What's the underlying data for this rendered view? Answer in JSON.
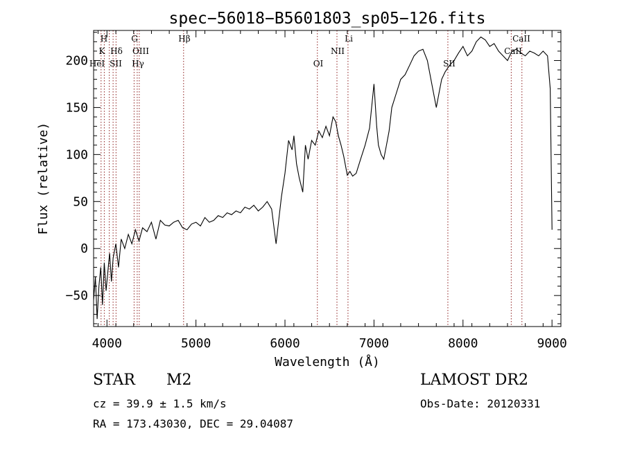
{
  "chart_data": {
    "type": "line",
    "title": "spec−56018−B5601803_sp05−126.fits",
    "xlabel": "Wavelength (Å)",
    "ylabel": "Flux (relative)",
    "xlim": [
      3850,
      9100
    ],
    "ylim": [
      -83,
      232
    ],
    "xticks": [
      4000,
      5000,
      6000,
      7000,
      8000,
      9000
    ],
    "xtick_labels": [
      "4000",
      "5000",
      "6000",
      "7000",
      "8000",
      "9000"
    ],
    "yticks": [
      -50,
      0,
      50,
      100,
      150,
      200
    ],
    "ytick_labels": [
      "−50",
      "0",
      "50",
      "100",
      "150",
      "200"
    ],
    "grid": false,
    "series": [
      {
        "x": [
          3850,
          3870,
          3890,
          3910,
          3930,
          3950,
          3970,
          3990,
          4010,
          4030,
          4050,
          4070,
          4100,
          4130,
          4160,
          4200,
          4240,
          4280,
          4320,
          4360,
          4400,
          4450,
          4500,
          4550,
          4600,
          4650,
          4700,
          4750,
          4800,
          4850,
          4900,
          4950,
          5000,
          5050,
          5100,
          5150,
          5200,
          5250,
          5300,
          5350,
          5400,
          5450,
          5500,
          5550,
          5600,
          5650,
          5700,
          5750,
          5800,
          5850,
          5880,
          5900,
          5930,
          5960,
          6000,
          6040,
          6080,
          6100,
          6130,
          6160,
          6200,
          6230,
          6260,
          6300,
          6340,
          6380,
          6420,
          6460,
          6500,
          6540,
          6570,
          6600,
          6630,
          6660,
          6700,
          6730,
          6760,
          6800,
          6850,
          6900,
          6950,
          7000,
          7030,
          7050,
          7080,
          7110,
          7140,
          7170,
          7200,
          7250,
          7300,
          7350,
          7400,
          7450,
          7500,
          7550,
          7600,
          7650,
          7700,
          7730,
          7760,
          7800,
          7850,
          7900,
          7950,
          8000,
          8050,
          8100,
          8150,
          8200,
          8250,
          8300,
          8350,
          8400,
          8450,
          8500,
          8550,
          8600,
          8650,
          8700,
          8750,
          8800,
          8850,
          8900,
          8950,
          8980,
          9000
        ],
        "y": [
          -55,
          -30,
          -75,
          -40,
          -20,
          -60,
          -15,
          -45,
          -25,
          -5,
          -35,
          -10,
          5,
          -20,
          10,
          0,
          15,
          5,
          20,
          8,
          22,
          18,
          28,
          10,
          30,
          25,
          24,
          28,
          30,
          22,
          20,
          26,
          28,
          24,
          33,
          28,
          30,
          35,
          33,
          38,
          36,
          40,
          38,
          44,
          42,
          46,
          40,
          44,
          50,
          42,
          20,
          5,
          30,
          55,
          80,
          115,
          105,
          120,
          90,
          75,
          60,
          110,
          95,
          115,
          110,
          125,
          118,
          130,
          120,
          140,
          135,
          120,
          110,
          98,
          78,
          82,
          77,
          80,
          95,
          110,
          128,
          175,
          130,
          110,
          100,
          95,
          110,
          125,
          150,
          165,
          180,
          185,
          195,
          205,
          210,
          212,
          200,
          175,
          150,
          165,
          180,
          188,
          195,
          200,
          208,
          215,
          205,
          210,
          220,
          225,
          222,
          215,
          218,
          210,
          205,
          200,
          210,
          212,
          208,
          205,
          210,
          208,
          205,
          210,
          205,
          170,
          20
        ]
      }
    ],
    "lines": [
      {
        "label": "H",
        "x": 3970
      },
      {
        "label": "K",
        "x": 3934
      },
      {
        "label": "HeI",
        "x": 4026
      },
      {
        "label": "SII",
        "x": 4069
      },
      {
        "label": "Hδ",
        "x": 4102
      },
      {
        "label": "G",
        "x": 4305
      },
      {
        "label": "OIII",
        "x": 4363
      },
      {
        "label": "Hγ",
        "x": 4340
      },
      {
        "label": "Hβ",
        "x": 4861
      },
      {
        "label": "OI",
        "x": 6364
      },
      {
        "label": "NII",
        "x": 6584
      },
      {
        "label": "Li",
        "x": 6708
      },
      {
        "label": "SII",
        "x": 7830
      },
      {
        "label": "CaII",
        "x": 8542
      },
      {
        "label": "CaII",
        "x": 8662
      }
    ],
    "line_label_rows": [
      {
        "labels": [
          "H",
          "G",
          "Hβ",
          "Li",
          "CaII"
        ]
      },
      {
        "labels": [
          "K",
          "Hδ",
          "OIII",
          "NII",
          "CaII"
        ]
      },
      {
        "labels": [
          "HeI",
          "SII",
          "Hγ",
          "OI",
          "SII"
        ]
      }
    ],
    "line_color": "#8b1a1a"
  },
  "footer": {
    "object_class": "STAR",
    "subclass": "M2",
    "survey": "LAMOST DR2",
    "redshift": "cz = 39.9 ± 1.5 km/s",
    "obs_date": "Obs-Date: 20120331",
    "coords": "RA = 173.43030, DEC =  29.04087"
  }
}
